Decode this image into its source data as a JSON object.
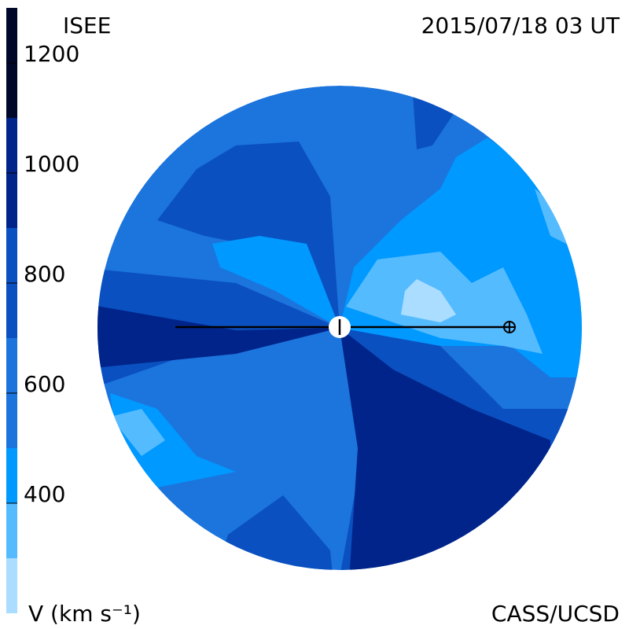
{
  "header": {
    "title": "ISEE",
    "time": "2015/07/18 03 UT",
    "credit": "CASS/UCSD"
  },
  "colorbar": {
    "label": "V (km s⁻¹)",
    "lim": [
      200,
      1300
    ],
    "ticks": [
      400,
      600,
      800,
      1000,
      1200
    ],
    "levels": [
      200,
      300,
      400,
      500,
      700,
      900,
      1100,
      1300
    ],
    "colors": [
      "#aaddff",
      "#55bbff",
      "#0099ff",
      "#1c74dd",
      "#0a50c0",
      "#00248a",
      "#00082a"
    ]
  }
}
